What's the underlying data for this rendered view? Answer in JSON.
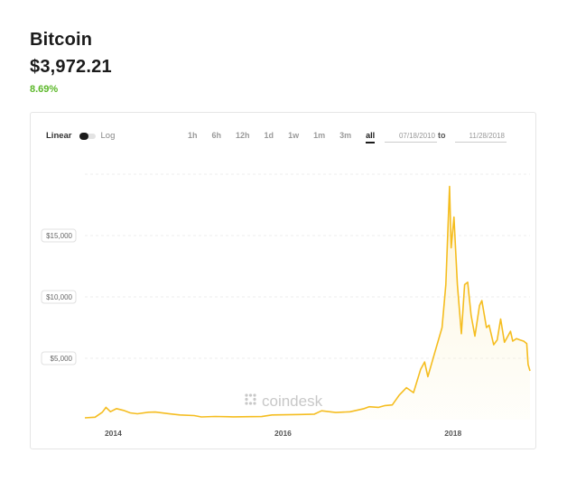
{
  "coin": {
    "name": "Bitcoin",
    "price": "$3,972.21",
    "change": "8.69%",
    "change_color": "#5cb82a"
  },
  "controls": {
    "scale_linear": "Linear",
    "scale_log": "Log",
    "ranges": [
      "1h",
      "6h",
      "12h",
      "1d",
      "1w",
      "1m",
      "3m",
      "all"
    ],
    "active_range": "all",
    "date_from": "07/18/2010",
    "date_separator": "to",
    "date_to": "11/28/2018"
  },
  "watermark": "coindesk",
  "chart_data": {
    "type": "area",
    "title": "",
    "xlabel": "",
    "ylabel": "",
    "line_color": "#f5bd1f",
    "grid": "horizontal dashed",
    "x_ticks": [
      "2014",
      "2016",
      "2018"
    ],
    "y_ticks": [
      "$5,000",
      "$10,000",
      "$15,000"
    ],
    "y_tick_values": [
      5000,
      10000,
      15000
    ],
    "ylim": [
      0,
      20000
    ],
    "xlim": [
      "2013-09-01",
      "2018-11-28"
    ],
    "series": [
      {
        "points": [
          [
            "2013-09-01",
            150
          ],
          [
            "2013-10-15",
            200
          ],
          [
            "2013-11-15",
            600
          ],
          [
            "2013-12-01",
            1000
          ],
          [
            "2013-12-20",
            650
          ],
          [
            "2014-01-15",
            900
          ],
          [
            "2014-02-15",
            750
          ],
          [
            "2014-03-15",
            550
          ],
          [
            "2014-04-15",
            480
          ],
          [
            "2014-06-01",
            600
          ],
          [
            "2014-07-01",
            620
          ],
          [
            "2014-09-01",
            470
          ],
          [
            "2014-10-15",
            380
          ],
          [
            "2014-12-15",
            330
          ],
          [
            "2015-01-15",
            220
          ],
          [
            "2015-03-15",
            260
          ],
          [
            "2015-06-01",
            230
          ],
          [
            "2015-08-15",
            240
          ],
          [
            "2015-10-01",
            250
          ],
          [
            "2015-11-15",
            380
          ],
          [
            "2016-01-15",
            400
          ],
          [
            "2016-03-15",
            420
          ],
          [
            "2016-05-15",
            450
          ],
          [
            "2016-06-15",
            720
          ],
          [
            "2016-08-15",
            580
          ],
          [
            "2016-10-15",
            640
          ],
          [
            "2016-12-15",
            900
          ],
          [
            "2017-01-05",
            1050
          ],
          [
            "2017-02-15",
            1000
          ],
          [
            "2017-03-15",
            1150
          ],
          [
            "2017-04-15",
            1200
          ],
          [
            "2017-05-15",
            2000
          ],
          [
            "2017-06-15",
            2600
          ],
          [
            "2017-07-15",
            2200
          ],
          [
            "2017-08-15",
            4100
          ],
          [
            "2017-09-01",
            4700
          ],
          [
            "2017-09-15",
            3500
          ],
          [
            "2017-10-15",
            5500
          ],
          [
            "2017-11-15",
            7500
          ],
          [
            "2017-12-01",
            11000
          ],
          [
            "2017-12-17",
            19000
          ],
          [
            "2017-12-24",
            14000
          ],
          [
            "2018-01-05",
            16500
          ],
          [
            "2018-01-20",
            11000
          ],
          [
            "2018-02-06",
            7000
          ],
          [
            "2018-02-20",
            11000
          ],
          [
            "2018-03-05",
            11200
          ],
          [
            "2018-03-20",
            8500
          ],
          [
            "2018-04-05",
            6800
          ],
          [
            "2018-04-25",
            9300
          ],
          [
            "2018-05-05",
            9700
          ],
          [
            "2018-05-25",
            7500
          ],
          [
            "2018-06-05",
            7700
          ],
          [
            "2018-06-25",
            6100
          ],
          [
            "2018-07-10",
            6500
          ],
          [
            "2018-07-25",
            8200
          ],
          [
            "2018-08-10",
            6300
          ],
          [
            "2018-08-25",
            6800
          ],
          [
            "2018-09-05",
            7200
          ],
          [
            "2018-09-15",
            6400
          ],
          [
            "2018-10-01",
            6600
          ],
          [
            "2018-10-15",
            6500
          ],
          [
            "2018-11-01",
            6400
          ],
          [
            "2018-11-14",
            6200
          ],
          [
            "2018-11-20",
            4500
          ],
          [
            "2018-11-28",
            3972
          ]
        ]
      }
    ]
  }
}
